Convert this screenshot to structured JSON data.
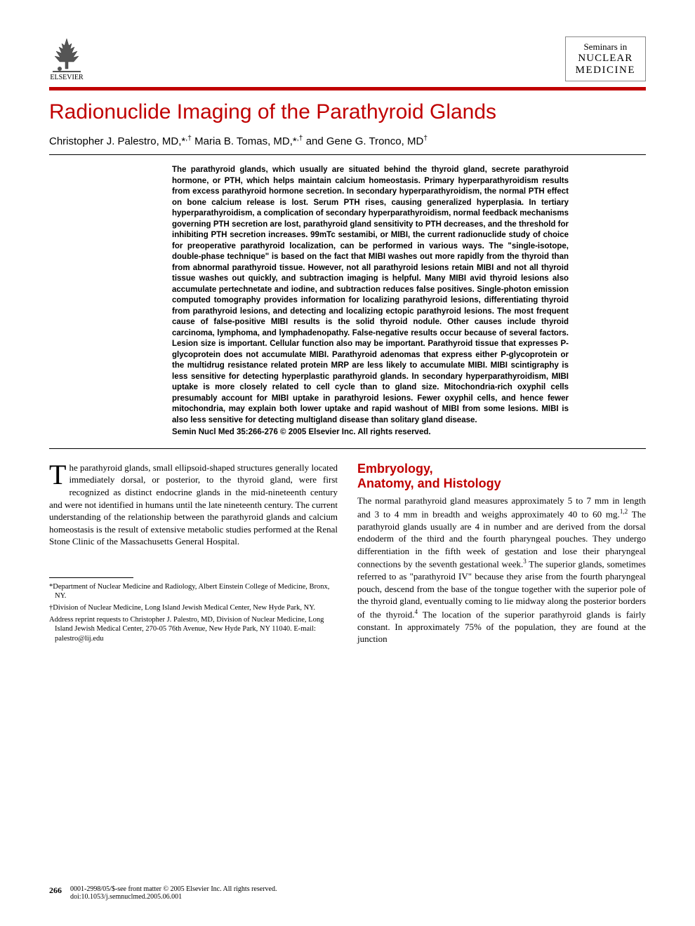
{
  "publisher": {
    "name": "ELSEVIER"
  },
  "journal": {
    "line1": "Seminars in",
    "line2": "NUCLEAR",
    "line3": "MEDICINE"
  },
  "article": {
    "title": "Radionuclide Imaging of the Parathyroid Glands",
    "authors_html": "Christopher J. Palestro, MD,*<sup>,†</sup> Maria B. Tomas, MD,*<sup>,†</sup> and Gene G. Tronco, MD<sup>†</sup>"
  },
  "abstract": {
    "text": "The parathyroid glands, which usually are situated behind the thyroid gland, secrete parathyroid hormone, or PTH, which helps maintain calcium homeostasis. Primary hyperparathyroidism results from excess parathyroid hormone secretion. In secondary hyperparathyroidism, the normal PTH effect on bone calcium release is lost. Serum PTH rises, causing generalized hyperplasia. In tertiary hyperparathyroidism, a complication of secondary hyperparathyroidism, normal feedback mechanisms governing PTH secretion are lost, parathyroid gland sensitivity to PTH decreases, and the threshold for inhibiting PTH secretion increases. 99mTc sestamibi, or MIBI, the current radionuclide study of choice for preoperative parathyroid localization, can be performed in various ways. The \"single-isotope, double-phase technique\" is based on the fact that MIBI washes out more rapidly from the thyroid than from abnormal parathyroid tissue. However, not all parathyroid lesions retain MIBI and not all thyroid tissue washes out quickly, and subtraction imaging is helpful. Many MIBI avid thyroid lesions also accumulate pertechnetate and iodine, and subtraction reduces false positives. Single-photon emission computed tomography provides information for localizing parathyroid lesions, differentiating thyroid from parathyroid lesions, and detecting and localizing ectopic parathyroid lesions. The most frequent cause of false-positive MIBI results is the solid thyroid nodule. Other causes include thyroid carcinoma, lymphoma, and lymphadenopathy. False-negative results occur because of several factors. Lesion size is important. Cellular function also may be important. Parathyroid tissue that expresses P-glycoprotein does not accumulate MIBI. Parathyroid adenomas that express either P-glycoprotein or the multidrug resistance related protein MRP are less likely to accumulate MIBI. MIBI scintigraphy is less sensitive for detecting hyperplastic parathyroid glands. In secondary hyperparathyroidism, MIBI uptake is more closely related to cell cycle than to gland size. Mitochondria-rich oxyphil cells presumably account for MIBI uptake in parathyroid lesions. Fewer oxyphil cells, and hence fewer mitochondria, may explain both lower uptake and rapid washout of MIBI from some lesions. MIBI is also less sensitive for detecting multigland disease than solitary gland disease.",
    "copyright": "Semin Nucl Med 35:266-276 © 2005 Elsevier Inc. All rights reserved."
  },
  "body": {
    "intro_dropcap": "T",
    "intro": "he parathyroid glands, small ellipsoid-shaped structures generally located immediately dorsal, or posterior, to the thyroid gland, were first recognized as distinct endocrine glands in the mid-nineteenth century and were not identified in humans until the late nineteenth century. The current understanding of the relationship between the parathyroid glands and calcium homeostasis is the result of extensive metabolic studies performed at the Renal Stone Clinic of the Massachusetts General Hospital.",
    "section1_heading_l1": "Embryology,",
    "section1_heading_l2": "Anatomy, and Histology",
    "section1_text_html": "The normal parathyroid gland measures approximately 5 to 7 mm in length and 3 to 4 mm in breadth and weighs approximately 40 to 60 mg.<sup>1,2</sup> The parathyroid glands usually are 4 in number and are derived from the dorsal endoderm of the third and the fourth pharyngeal pouches. They undergo differentiation in the fifth week of gestation and lose their pharyngeal connections by the seventh gestational week.<sup>3</sup> The superior glands, sometimes referred to as \"parathyroid IV\" because they arise from the fourth pharyngeal pouch, descend from the base of the tongue together with the superior pole of the thyroid gland, eventually coming to lie midway along the posterior borders of the thyroid.<sup>4</sup> The location of the superior parathyroid glands is fairly constant. In approximately 75% of the population, they are found at the junction"
  },
  "affiliations": {
    "a1": "*Department of Nuclear Medicine and Radiology, Albert Einstein College of Medicine, Bronx, NY.",
    "a2": "†Division of Nuclear Medicine, Long Island Jewish Medical Center, New Hyde Park, NY.",
    "a3": "Address reprint requests to Christopher J. Palestro, MD, Division of Nuclear Medicine, Long Island Jewish Medical Center, 270-05 76th Avenue, New Hyde Park, NY 11040. E-mail: palestro@lij.edu"
  },
  "footer": {
    "page": "266",
    "line1": "0001-2998/05/$-see front matter © 2005 Elsevier Inc. All rights reserved.",
    "line2": "doi:10.1053/j.semnuclmed.2005.06.001"
  },
  "colors": {
    "accent": "#c00000",
    "text": "#000000",
    "background": "#ffffff",
    "rule": "#000000"
  }
}
